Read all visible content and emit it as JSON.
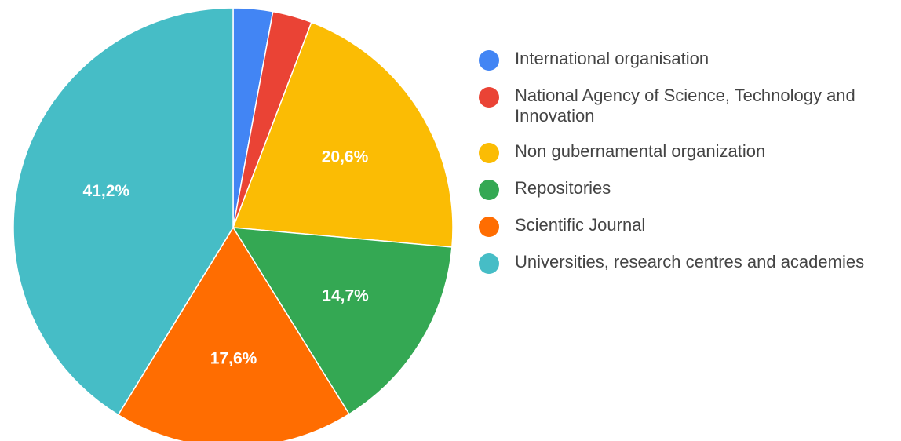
{
  "chart_data": {
    "type": "pie",
    "start_angle_deg": 0,
    "direction": "clockwise",
    "legend_position": "right",
    "slices": [
      {
        "label": "International organisation",
        "value": 2.9,
        "display": "",
        "color": "#4285f4"
      },
      {
        "label": "National Agency of Science, Technology and Innovation",
        "value": 2.9,
        "display": "",
        "color": "#ea4335"
      },
      {
        "label": "Non gubernamental organization",
        "value": 20.6,
        "display": "20,6%",
        "color": "#fbbc04"
      },
      {
        "label": "Repositories",
        "value": 14.7,
        "display": "14,7%",
        "color": "#34a853"
      },
      {
        "label": "Scientific Journal",
        "value": 17.6,
        "display": "17,6%",
        "color": "#ff6d01"
      },
      {
        "label": "Universities, research centres and academies",
        "value": 41.2,
        "display": "41,2%",
        "color": "#46bdc6"
      }
    ]
  }
}
